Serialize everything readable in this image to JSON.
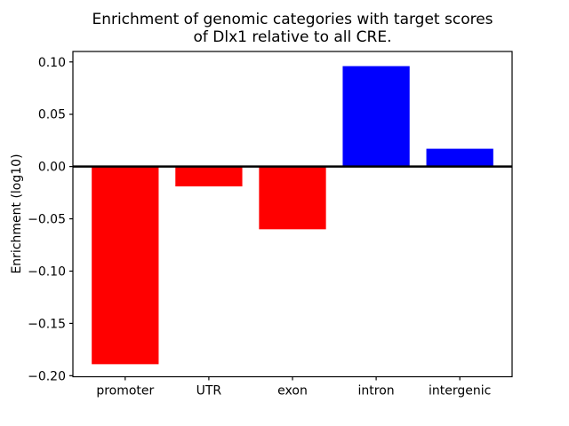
{
  "title_text": "Enrichment of genomic categories with target scores\nof Dlx1 relative to all CRE.",
  "chart_data": {
    "type": "bar",
    "title": "Enrichment of genomic categories with target scores of Dlx1 relative to all CRE.",
    "xlabel": "",
    "ylabel": "Enrichment (log10)",
    "categories": [
      "promoter",
      "UTR",
      "exon",
      "intron",
      "intergenic"
    ],
    "values": [
      -0.189,
      -0.019,
      -0.06,
      0.096,
      0.017
    ],
    "bar_colors": [
      "#ff0000",
      "#ff0000",
      "#ff0000",
      "#0000ff",
      "#0000ff"
    ],
    "negative_color": "#ff0000",
    "positive_color": "#0000ff",
    "yticks": [
      0.1,
      0.05,
      0.0,
      -0.05,
      -0.1,
      -0.15,
      -0.2
    ],
    "ytick_labels": [
      "0.10",
      "0.05",
      "0.00",
      "−0.05",
      "−0.10",
      "−0.15",
      "−0.20"
    ],
    "ylim": [
      -0.201,
      0.11
    ],
    "xlim": [
      -0.625,
      4.625
    ],
    "bar_width": 0.8,
    "grid": false,
    "legend": null,
    "zero_line": true,
    "background_color": "#ffffff",
    "spine_color": "#000000"
  }
}
